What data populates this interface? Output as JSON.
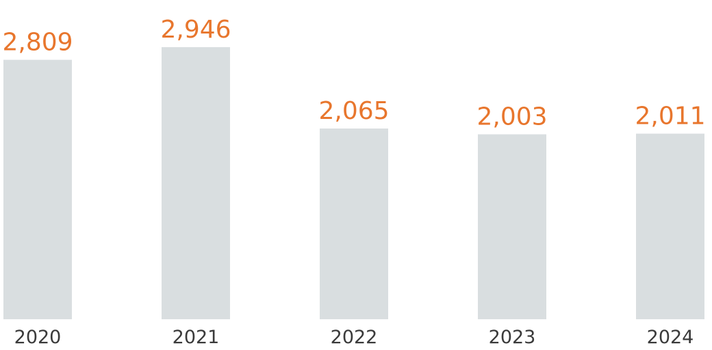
{
  "chart_data": {
    "type": "bar",
    "categories": [
      "2020",
      "2021",
      "2022",
      "2023",
      "2024"
    ],
    "values": [
      2809,
      2946,
      2065,
      2003,
      2011
    ],
    "value_labels": [
      "2,809",
      "2,946",
      "2,065",
      "2,003",
      "2,011"
    ],
    "title": "",
    "xlabel": "",
    "ylabel": "",
    "ylim": [
      0,
      2946
    ],
    "grid": false,
    "legend": "none",
    "colors": {
      "bar": "#d9dee0",
      "value_label": "#e8762d",
      "category_label": "#3a3a3a"
    }
  }
}
